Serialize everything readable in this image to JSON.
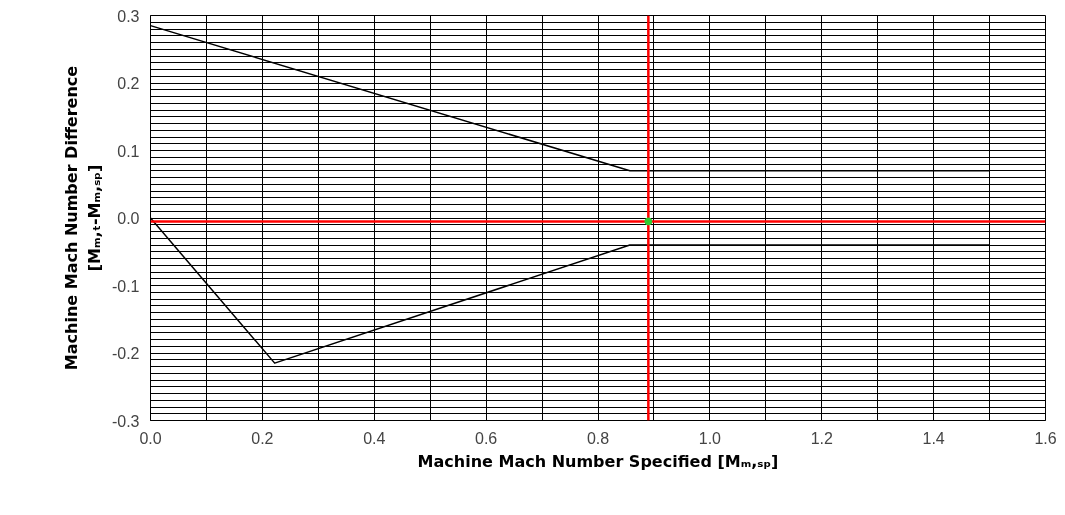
{
  "chart_data": {
    "type": "line",
    "xlabel": "Machine Mach Number Specified [Mₘ,ₛₚ]",
    "ylabel": "Machine Mach Number Difference\n[Mₘ,ₜ-Mₘ,ₛₚ]",
    "series": [
      {
        "color": "#000000",
        "x": [
          0,
          0.857,
          1.5
        ],
        "values": [
          0.285,
          0.07,
          0.07
        ]
      },
      {
        "color": "#000000",
        "x": [
          0,
          0.222,
          0.857,
          1.5
        ],
        "values": [
          0,
          -0.215,
          -0.04,
          -0.04
        ]
      },
      {
        "type": "scatter",
        "color": "#33cc33",
        "x": [
          0.89
        ],
        "values": [
          -0.005
        ]
      }
    ],
    "ref_lines": [
      {
        "axis": "x",
        "value": 0.89,
        "color": "#ff0000"
      },
      {
        "axis": "y",
        "value": -0.005,
        "color": "#ff0000"
      }
    ],
    "xlim": [
      0,
      1.6
    ],
    "ylim": [
      -0.3,
      0.3
    ],
    "xticks": [
      {
        "value": 0,
        "label": "0.0"
      },
      {
        "value": 0.1,
        "label": null
      },
      {
        "value": 0.2,
        "label": "0.2"
      },
      {
        "value": 0.3,
        "label": null
      },
      {
        "value": 0.4,
        "label": "0.4"
      },
      {
        "value": 0.5,
        "label": null
      },
      {
        "value": 0.6,
        "label": "0.6"
      },
      {
        "value": 0.7,
        "label": null
      },
      {
        "value": 0.8,
        "label": "0.8"
      },
      {
        "value": 0.9,
        "label": null
      },
      {
        "value": 1.0,
        "label": "1.0"
      },
      {
        "value": 1.1,
        "label": null
      },
      {
        "value": 1.2,
        "label": "1.2"
      },
      {
        "value": 1.3,
        "label": null
      },
      {
        "value": 1.4,
        "label": "1.4"
      },
      {
        "value": 1.5,
        "label": null
      },
      {
        "value": 1.6,
        "label": "1.6"
      }
    ],
    "yticks": [
      {
        "value": -0.3,
        "label": "-0.3"
      },
      {
        "value": -0.2,
        "label": "-0.2"
      },
      {
        "value": -0.1,
        "label": "-0.1"
      },
      {
        "value": 0.0,
        "label": "0.0"
      },
      {
        "value": 0.1,
        "label": "0.1"
      },
      {
        "value": 0.2,
        "label": "0.2"
      },
      {
        "value": 0.3,
        "label": "0.3"
      }
    ],
    "grid": true,
    "marker": "none",
    "line_style": "solid"
  }
}
